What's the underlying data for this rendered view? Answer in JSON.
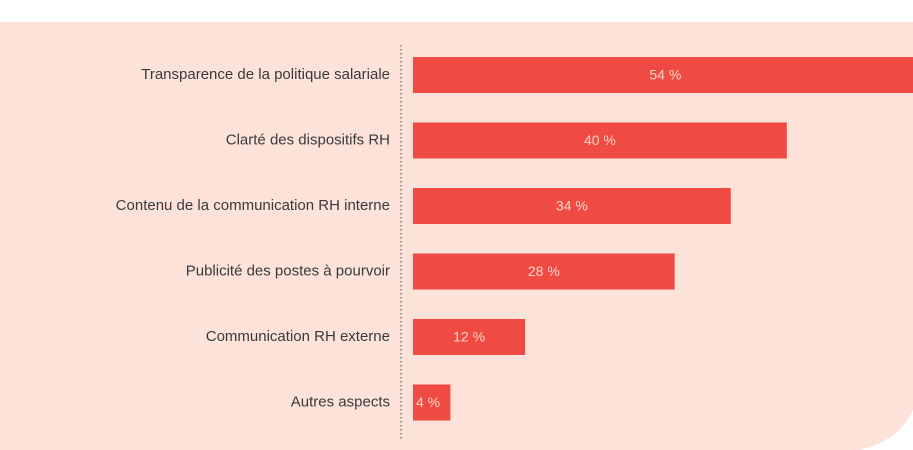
{
  "chart_data": {
    "type": "barh",
    "categories": [
      "Transparence de la politique salariale",
      "Clarté des dispositifs RH",
      "Contenu de la communication RH interne",
      "Publicité des postes à pourvoir",
      "Communication RH externe",
      "Autres aspects"
    ],
    "values": [
      54,
      40,
      34,
      28,
      12,
      4
    ],
    "value_labels": [
      "54 %",
      "40 %",
      "34 %",
      "28 %",
      "12 %",
      "4 %"
    ],
    "color": "#ef4b42",
    "xlim": [
      0,
      53.5
    ]
  }
}
